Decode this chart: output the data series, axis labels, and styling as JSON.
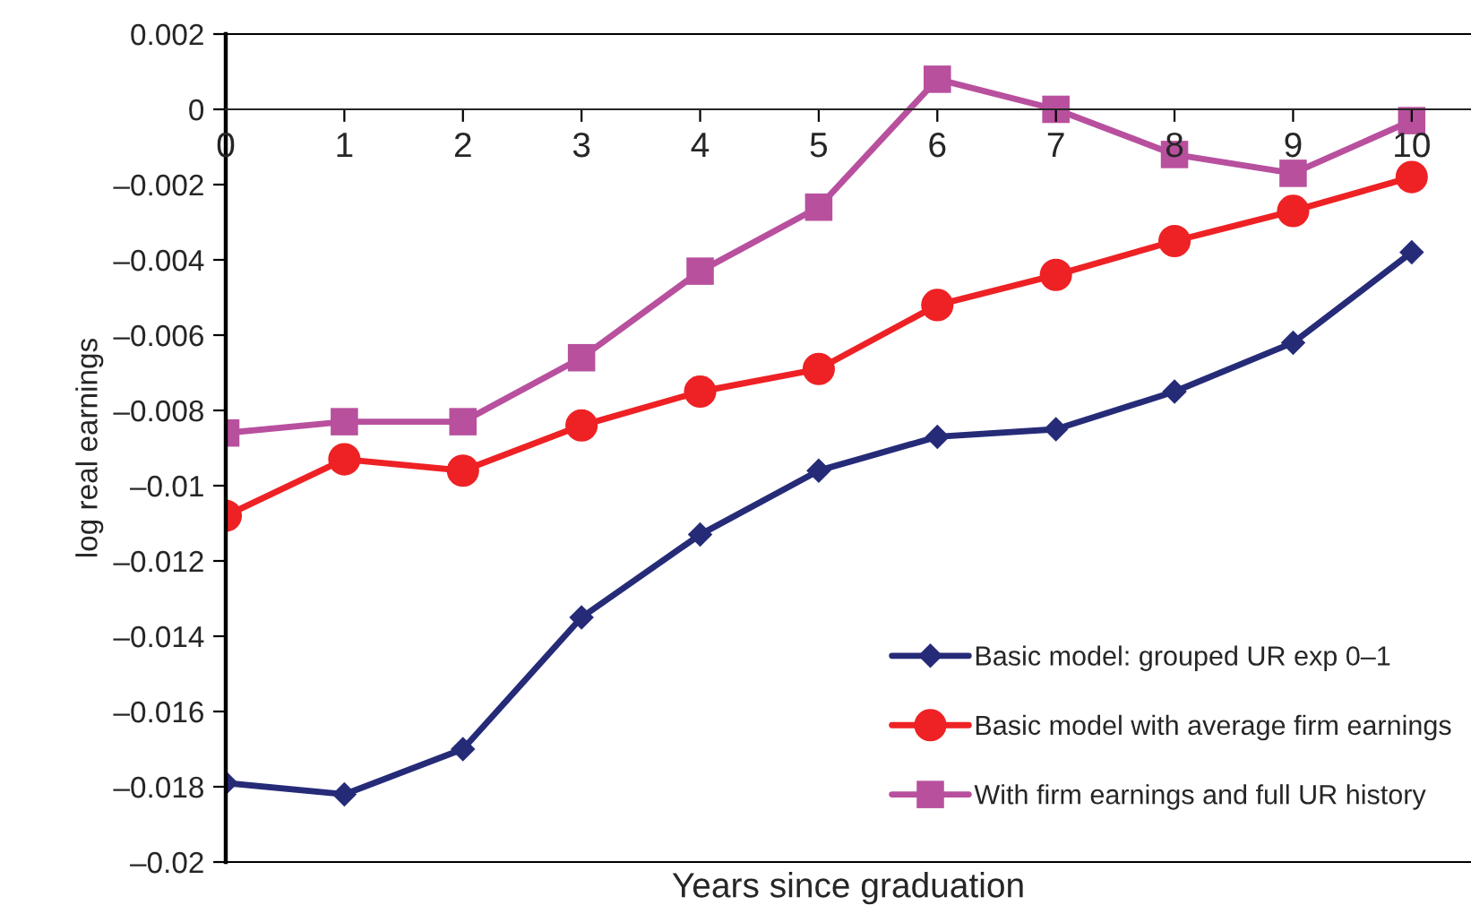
{
  "chart_data": {
    "type": "line",
    "xlabel": "Years since graduation",
    "ylabel": "log real earnings",
    "x": [
      0,
      1,
      2,
      3,
      4,
      5,
      6,
      7,
      8,
      9,
      10
    ],
    "xlim": [
      0,
      10.5
    ],
    "xticks": [
      0,
      1,
      2,
      3,
      4,
      5,
      6,
      7,
      8,
      9,
      10
    ],
    "ylim": [
      -0.02,
      0.002
    ],
    "yticks": [
      {
        "value": 0.002,
        "label": "0.002"
      },
      {
        "value": 0,
        "label": "0"
      },
      {
        "value": -0.002,
        "label": "–0.002"
      },
      {
        "value": -0.004,
        "label": "–0.004"
      },
      {
        "value": -0.006,
        "label": "–0.006"
      },
      {
        "value": -0.008,
        "label": "–0.008"
      },
      {
        "value": -0.01,
        "label": "–0.01"
      },
      {
        "value": -0.012,
        "label": "–0.012"
      },
      {
        "value": -0.014,
        "label": "–0.014"
      },
      {
        "value": -0.016,
        "label": "–0.016"
      },
      {
        "value": -0.018,
        "label": "–0.018"
      },
      {
        "value": -0.02,
        "label": "–0.02"
      }
    ],
    "grid": false,
    "legend": "bottom right",
    "line_style": "solid",
    "series": [
      {
        "name": "Basic model: grouped UR exp 0–1",
        "color": "#262b78",
        "marker": "diamond",
        "values": [
          -0.0179,
          -0.0182,
          -0.017,
          -0.0135,
          -0.0113,
          -0.0096,
          -0.0087,
          -0.0085,
          -0.0075,
          -0.0062,
          -0.0038
        ]
      },
      {
        "name": "Basic model with average firm earnings",
        "color": "#ee2124",
        "marker": "circle",
        "values": [
          -0.0108,
          -0.0093,
          -0.0096,
          -0.0084,
          -0.0075,
          -0.0069,
          -0.0052,
          -0.0044,
          -0.0035,
          -0.0027,
          -0.0018
        ]
      },
      {
        "name": "With firm earnings and full UR history",
        "color": "#b8509e",
        "marker": "square",
        "values": [
          -0.0086,
          -0.0083,
          -0.0083,
          -0.0066,
          -0.0043,
          -0.0026,
          0.0008,
          0.0,
          -0.0012,
          -0.0017,
          -0.0003
        ]
      }
    ]
  }
}
